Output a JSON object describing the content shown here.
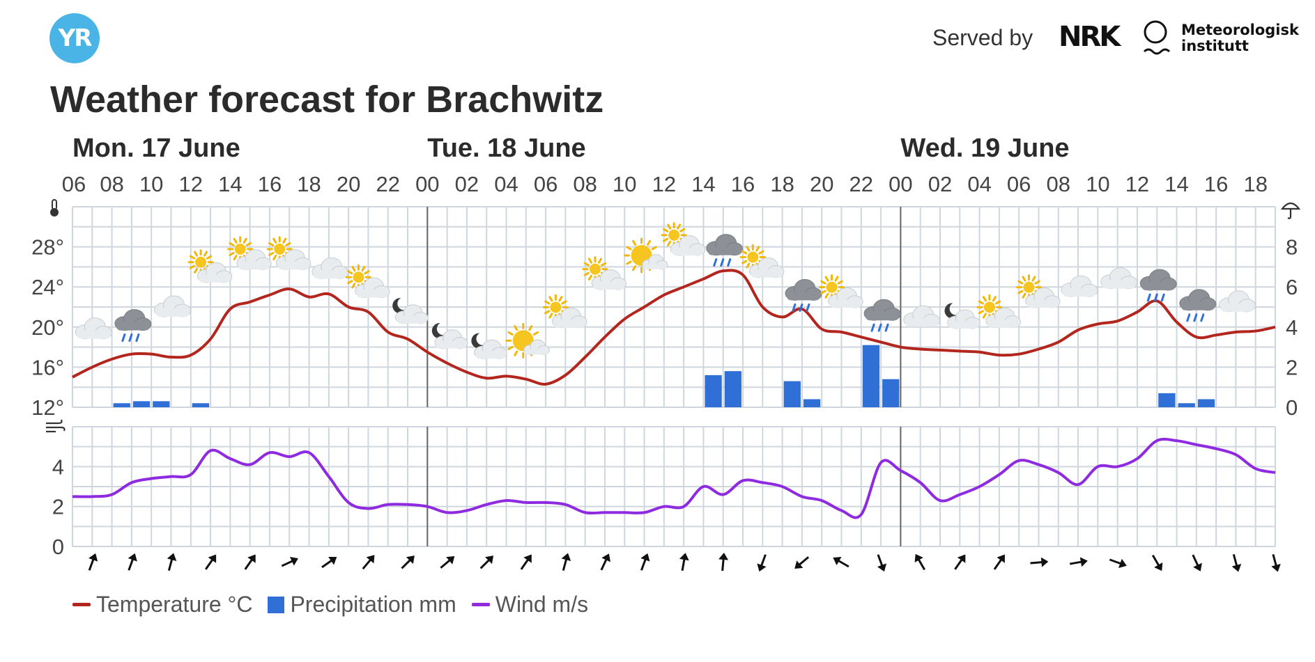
{
  "header": {
    "logo_text": "YR",
    "served_by": "Served by",
    "nrk": "NRK",
    "met_line1": "Meteorologisk",
    "met_line2": "institutt"
  },
  "title": "Weather forecast for Brachwitz",
  "colors": {
    "temperature": "#b3261e",
    "precipitation": "#2f6fd6",
    "wind": "#8e2ae0",
    "grid": "#cfd6dd",
    "day_divider": "#666666"
  },
  "chart_data": {
    "type": "line",
    "days": [
      {
        "label": "Mon. 17 June",
        "start_hour": 0
      },
      {
        "label": "Tue. 18 June",
        "start_hour": 18
      },
      {
        "label": "Wed. 19 June",
        "start_hour": 42
      }
    ],
    "x_tick_labels": [
      "06",
      "08",
      "10",
      "12",
      "14",
      "16",
      "18",
      "20",
      "22",
      "00",
      "02",
      "04",
      "06",
      "08",
      "10",
      "12",
      "14",
      "16",
      "18",
      "20",
      "22",
      "00",
      "02",
      "04",
      "06",
      "08",
      "10",
      "12",
      "14",
      "16",
      "18"
    ],
    "hours_span": 61,
    "temperature": {
      "name": "Temperature °C",
      "unit": "°C",
      "ylim": [
        12,
        32
      ],
      "y_ticks": [
        12,
        16,
        20,
        24,
        28
      ],
      "values": [
        15.0,
        16.0,
        16.8,
        17.3,
        17.3,
        17.0,
        17.2,
        18.8,
        21.8,
        22.5,
        23.2,
        23.8,
        23.0,
        23.3,
        22.0,
        21.5,
        19.5,
        18.8,
        17.5,
        16.4,
        15.5,
        14.9,
        15.1,
        14.8,
        14.3,
        15.2,
        17.0,
        19.0,
        20.8,
        22.0,
        23.2,
        24.0,
        24.8,
        25.6,
        25.2,
        22.0,
        21.0,
        21.8,
        19.8,
        19.5,
        19.0,
        18.5,
        18.0,
        17.8,
        17.7,
        17.6,
        17.5,
        17.2,
        17.3,
        17.8,
        18.5,
        19.7,
        20.3,
        20.6,
        21.5,
        22.6,
        20.5,
        19.0,
        19.2,
        19.5,
        19.6,
        20.0
      ]
    },
    "precipitation": {
      "name": "Precipitation mm",
      "unit": "mm",
      "ylim": [
        0,
        10
      ],
      "y_ticks": [
        0,
        2,
        4,
        6,
        8
      ],
      "bars": [
        {
          "hour": 2,
          "value": 0.2
        },
        {
          "hour": 3,
          "value": 0.3
        },
        {
          "hour": 4,
          "value": 0.3
        },
        {
          "hour": 6,
          "value": 0.2
        },
        {
          "hour": 32,
          "value": 1.6
        },
        {
          "hour": 33,
          "value": 1.8
        },
        {
          "hour": 36,
          "value": 1.3
        },
        {
          "hour": 37,
          "value": 0.4
        },
        {
          "hour": 40,
          "value": 3.1
        },
        {
          "hour": 41,
          "value": 1.4
        },
        {
          "hour": 55,
          "value": 0.7
        },
        {
          "hour": 56,
          "value": 0.2
        },
        {
          "hour": 57,
          "value": 0.4
        }
      ]
    },
    "wind": {
      "name": "Wind m/s",
      "unit": "m/s",
      "ylim": [
        0,
        6
      ],
      "y_ticks": [
        0,
        2,
        4
      ],
      "values": [
        2.5,
        2.5,
        2.6,
        3.2,
        3.4,
        3.5,
        3.6,
        4.8,
        4.4,
        4.1,
        4.7,
        4.5,
        4.7,
        3.5,
        2.2,
        1.9,
        2.1,
        2.1,
        2.0,
        1.7,
        1.8,
        2.1,
        2.3,
        2.2,
        2.2,
        2.1,
        1.7,
        1.7,
        1.7,
        1.7,
        2.0,
        2.0,
        3.0,
        2.6,
        3.3,
        3.2,
        3.0,
        2.5,
        2.3,
        1.8,
        1.6,
        4.2,
        3.8,
        3.2,
        2.3,
        2.6,
        3.0,
        3.6,
        4.3,
        4.1,
        3.7,
        3.1,
        4.0,
        4.0,
        4.4,
        5.3,
        5.3,
        5.1,
        4.9,
        4.6,
        3.9,
        3.7
      ]
    },
    "wind_direction_deg": [
      20,
      20,
      15,
      35,
      35,
      65,
      55,
      40,
      45,
      50,
      45,
      35,
      15,
      25,
      20,
      10,
      5,
      200,
      230,
      300,
      160,
      330,
      35,
      35,
      85,
      80,
      110,
      150,
      155,
      165,
      165
    ],
    "weather_symbols": [
      {
        "hour": 1,
        "icon": "cloud-icon",
        "t": 19.8
      },
      {
        "hour": 3,
        "icon": "rain-cloud-icon",
        "t": 20.5
      },
      {
        "hour": 5,
        "icon": "cloud-icon",
        "t": 22.0
      },
      {
        "hour": 7,
        "icon": "partly-sunny-icon",
        "t": 25.5
      },
      {
        "hour": 9,
        "icon": "partly-sunny-icon",
        "t": 26.8
      },
      {
        "hour": 11,
        "icon": "partly-sunny-icon",
        "t": 26.8
      },
      {
        "hour": 13,
        "icon": "cloud-icon",
        "t": 25.8
      },
      {
        "hour": 15,
        "icon": "partly-sunny-icon",
        "t": 24.0
      },
      {
        "hour": 17,
        "icon": "night-cloud-icon",
        "t": 21.5
      },
      {
        "hour": 19,
        "icon": "night-cloud-icon",
        "t": 19.0
      },
      {
        "hour": 21,
        "icon": "night-cloud-icon",
        "t": 18.0
      },
      {
        "hour": 23,
        "icon": "sun-cloud-icon",
        "t": 18.5
      },
      {
        "hour": 25,
        "icon": "partly-sunny-icon",
        "t": 21.0
      },
      {
        "hour": 27,
        "icon": "partly-sunny-icon",
        "t": 24.8
      },
      {
        "hour": 29,
        "icon": "sun-cloud-icon",
        "t": 27.0
      },
      {
        "hour": 31,
        "icon": "partly-sunny-icon",
        "t": 28.2
      },
      {
        "hour": 33,
        "icon": "rain-cloud-icon",
        "t": 28.0
      },
      {
        "hour": 35,
        "icon": "partly-sunny-icon",
        "t": 26.0
      },
      {
        "hour": 37,
        "icon": "rain-cloud-icon",
        "t": 23.5
      },
      {
        "hour": 39,
        "icon": "partly-sunny-icon",
        "t": 23.0
      },
      {
        "hour": 41,
        "icon": "rain-cloud-icon",
        "t": 21.5
      },
      {
        "hour": 43,
        "icon": "cloud-icon",
        "t": 21.0
      },
      {
        "hour": 45,
        "icon": "night-cloud-icon",
        "t": 21.0
      },
      {
        "hour": 47,
        "icon": "partly-sunny-icon",
        "t": 21.0
      },
      {
        "hour": 49,
        "icon": "partly-sunny-icon",
        "t": 23.0
      },
      {
        "hour": 51,
        "icon": "cloud-icon",
        "t": 24.0
      },
      {
        "hour": 53,
        "icon": "cloud-icon",
        "t": 24.8
      },
      {
        "hour": 55,
        "icon": "rain-cloud-icon",
        "t": 24.5
      },
      {
        "hour": 57,
        "icon": "rain-cloud-icon",
        "t": 22.5
      },
      {
        "hour": 59,
        "icon": "cloud-icon",
        "t": 22.5
      }
    ],
    "legend": [
      "Temperature °C",
      "Precipitation mm",
      "Wind m/s"
    ],
    "grid": true
  }
}
